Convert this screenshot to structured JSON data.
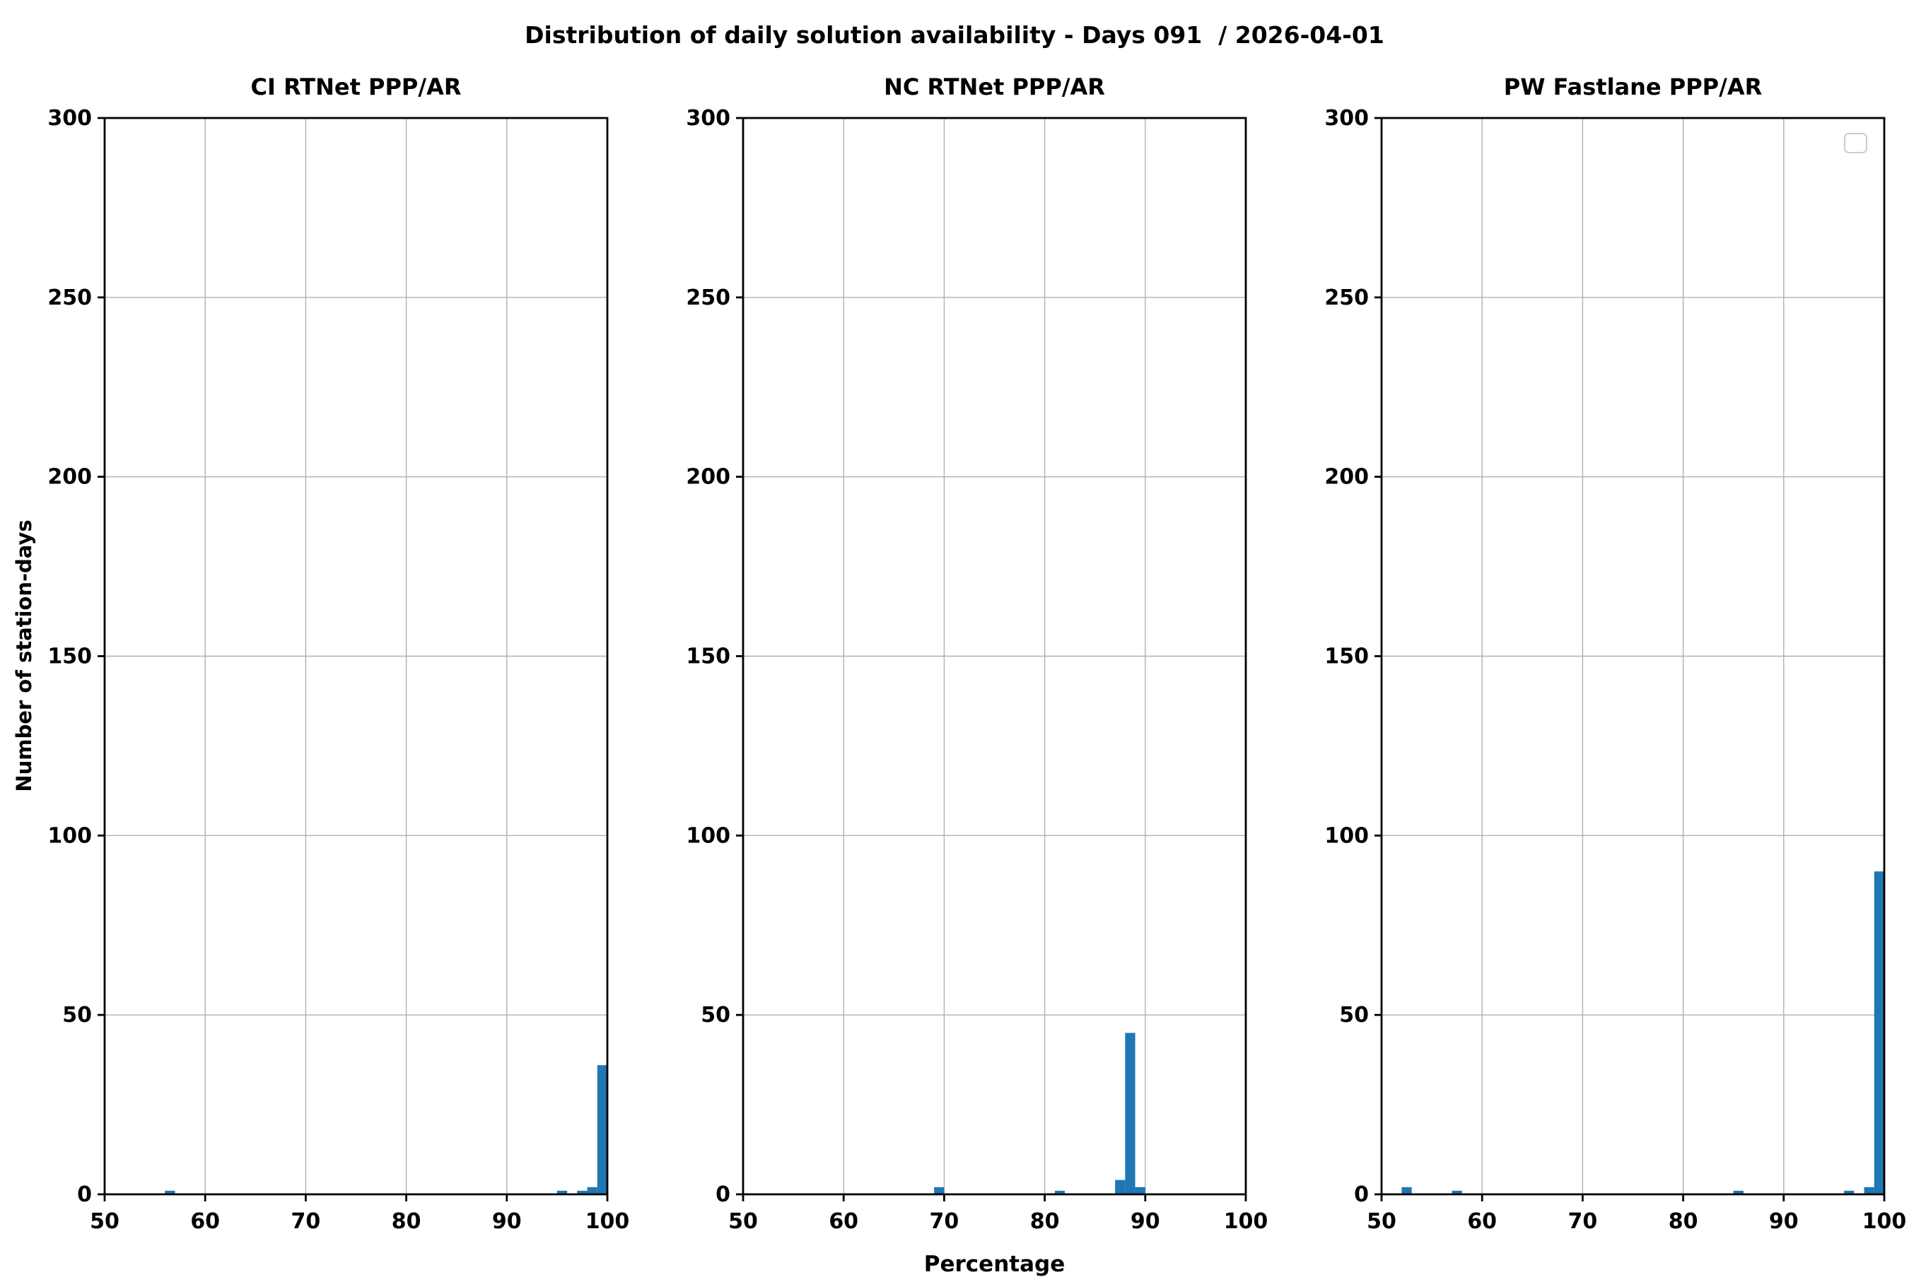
{
  "figure": {
    "title": "Distribution of daily solution availability - Days 091  / 2026-04-01",
    "xlabel": "Percentage",
    "ylabel": "Number of station-days",
    "background_color": "#ffffff",
    "bar_color": "#1f77b4",
    "grid_color": "#b0b0b0",
    "spine_color": "#000000",
    "text_color": "#000000",
    "legend_border_color": "#cccccc"
  },
  "chart_data": [
    {
      "type": "bar",
      "title": "CI RTNet PPP/AR",
      "xlabel": "Percentage",
      "ylabel": "Number of station-days",
      "xlim": [
        50,
        100
      ],
      "ylim": [
        0,
        300
      ],
      "xticks": [
        50,
        60,
        70,
        80,
        90,
        100
      ],
      "yticks": [
        0,
        50,
        100,
        150,
        200,
        250,
        300
      ],
      "grid": true,
      "bin_width": 1,
      "bars": [
        {
          "x": 56,
          "count": 1
        },
        {
          "x": 95,
          "count": 1
        },
        {
          "x": 97,
          "count": 1
        },
        {
          "x": 98,
          "count": 2
        },
        {
          "x": 99,
          "count": 36
        }
      ],
      "legend": {
        "visible": false
      }
    },
    {
      "type": "bar",
      "title": "NC RTNet PPP/AR",
      "xlabel": "Percentage",
      "ylabel": "Number of station-days",
      "xlim": [
        50,
        100
      ],
      "ylim": [
        0,
        300
      ],
      "xticks": [
        50,
        60,
        70,
        80,
        90,
        100
      ],
      "yticks": [
        0,
        50,
        100,
        150,
        200,
        250,
        300
      ],
      "grid": true,
      "bin_width": 1,
      "bars": [
        {
          "x": 69,
          "count": 2
        },
        {
          "x": 81,
          "count": 1
        },
        {
          "x": 87,
          "count": 4
        },
        {
          "x": 88,
          "count": 45
        },
        {
          "x": 89,
          "count": 2
        }
      ],
      "legend": {
        "visible": false
      }
    },
    {
      "type": "bar",
      "title": "PW Fastlane PPP/AR",
      "xlabel": "Percentage",
      "ylabel": "Number of station-days",
      "xlim": [
        50,
        100
      ],
      "ylim": [
        0,
        300
      ],
      "xticks": [
        50,
        60,
        70,
        80,
        90,
        100
      ],
      "yticks": [
        0,
        50,
        100,
        150,
        200,
        250,
        300
      ],
      "grid": true,
      "bin_width": 1,
      "bars": [
        {
          "x": 52,
          "count": 2
        },
        {
          "x": 57,
          "count": 1
        },
        {
          "x": 85,
          "count": 1
        },
        {
          "x": 96,
          "count": 1
        },
        {
          "x": 98,
          "count": 2
        },
        {
          "x": 99,
          "count": 90
        }
      ],
      "legend": {
        "visible": true,
        "items": []
      }
    }
  ]
}
